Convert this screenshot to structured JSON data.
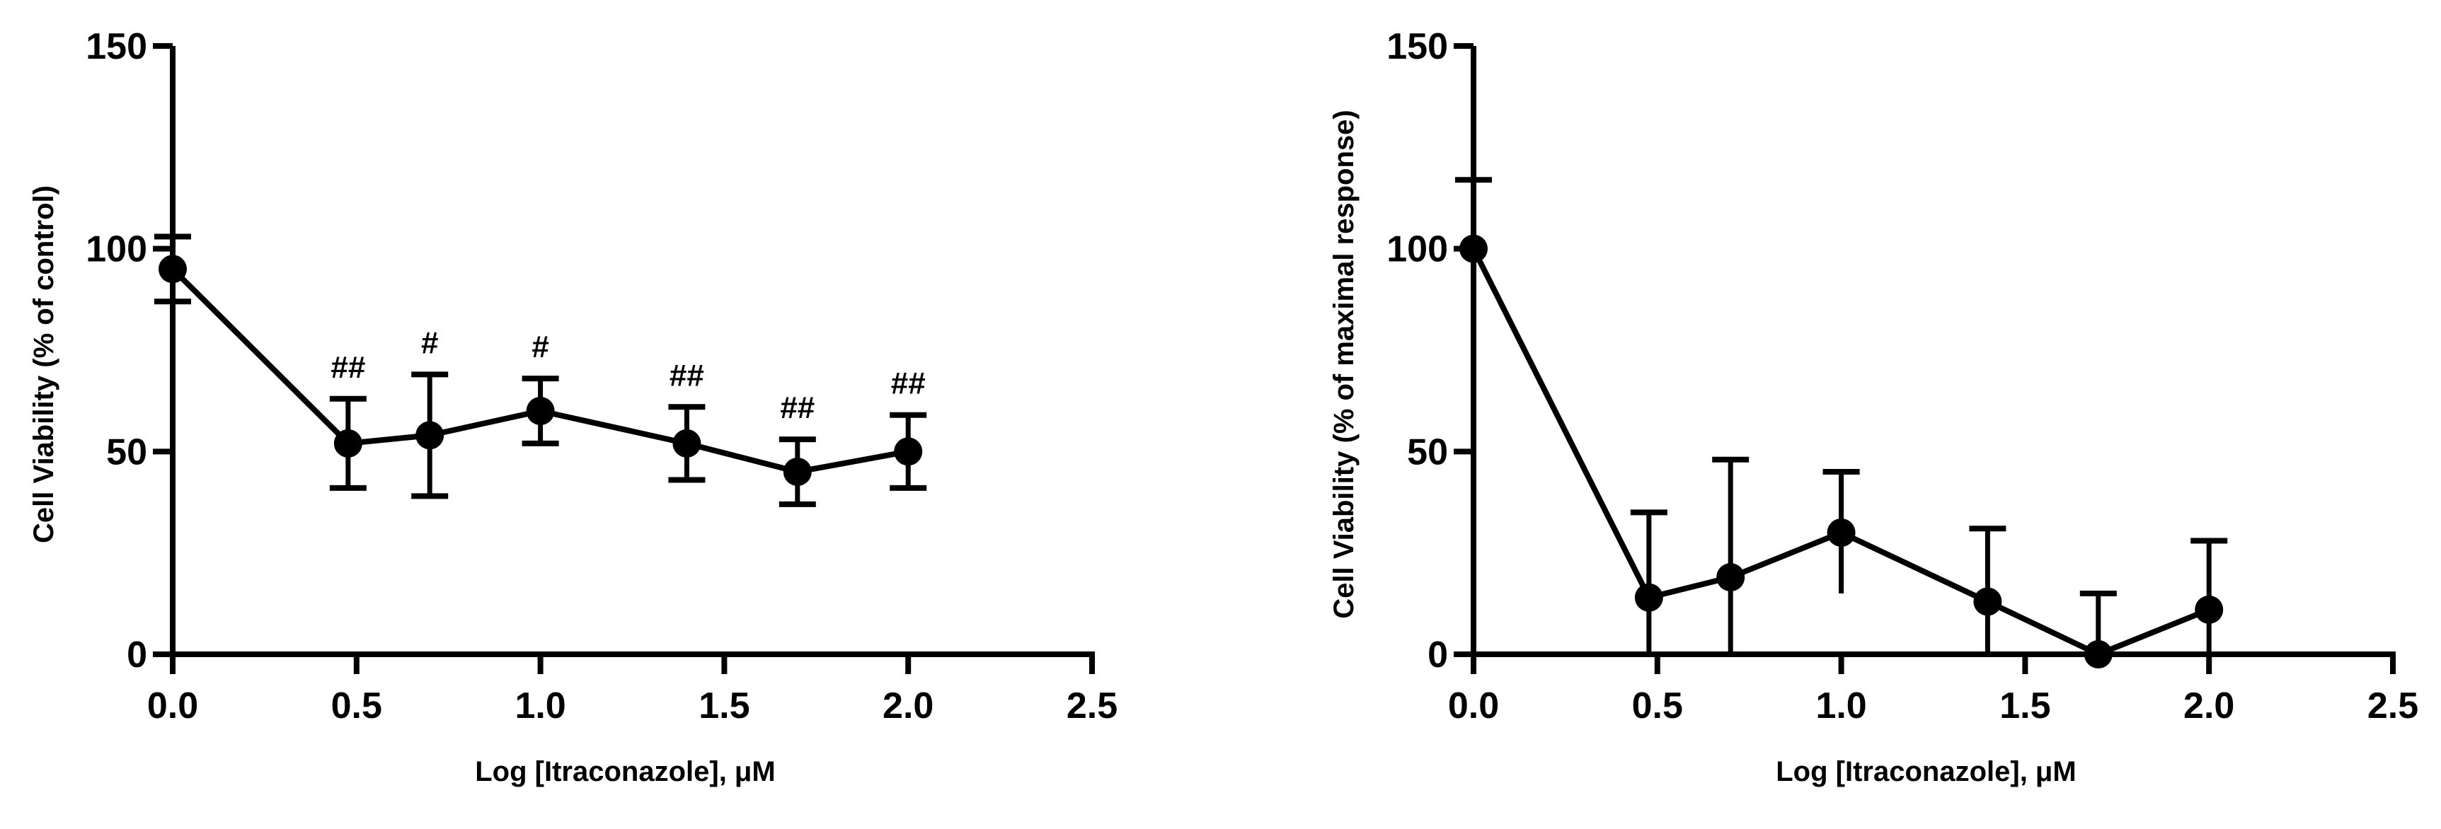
{
  "chart_data": [
    {
      "type": "line",
      "xlabel": "Log [Itraconazole], μM",
      "ylabel": "Cell Viability (% of control)",
      "xlim": [
        0,
        2.5
      ],
      "ylim": [
        0,
        150
      ],
      "x_ticks": [
        0.0,
        0.5,
        1.0,
        1.5,
        2.0,
        2.5
      ],
      "x_tick_labels": [
        "0.0",
        "0.5",
        "1.0",
        "1.5",
        "2.0",
        "2.5"
      ],
      "y_ticks": [
        0,
        50,
        100,
        150
      ],
      "y_tick_labels": [
        "0",
        "50",
        "100",
        "150"
      ],
      "error_bars": "symmetric",
      "series": [
        {
          "name": "Itraconazole",
          "x": [
            0.0,
            0.477,
            0.699,
            1.0,
            1.398,
            1.699,
            2.0
          ],
          "y": [
            95,
            52,
            54,
            60,
            52,
            45,
            50
          ],
          "error": [
            8,
            11,
            15,
            8,
            9,
            8,
            9
          ],
          "annotations": [
            "",
            "##",
            "#",
            "#",
            "##",
            "##",
            "##"
          ]
        }
      ]
    },
    {
      "type": "line",
      "xlabel": "Log [Itraconazole], μM",
      "ylabel": "Cell Viability (% of maximal response)",
      "xlim": [
        0,
        2.5
      ],
      "ylim": [
        0,
        150
      ],
      "x_ticks": [
        0.0,
        0.5,
        1.0,
        1.5,
        2.0,
        2.5
      ],
      "x_tick_labels": [
        "0.0",
        "0.5",
        "1.0",
        "1.5",
        "2.0",
        "2.5"
      ],
      "y_ticks": [
        0,
        50,
        100,
        150
      ],
      "y_tick_labels": [
        "0",
        "50",
        "100",
        "150"
      ],
      "error_bars": "upper-and-lower",
      "series": [
        {
          "name": "Itraconazole",
          "x": [
            0.0,
            0.477,
            0.699,
            1.0,
            1.398,
            1.699,
            2.0
          ],
          "y": [
            100,
            14,
            19,
            30,
            13,
            0,
            11
          ],
          "error": [
            17,
            21,
            29,
            15,
            18,
            15,
            17
          ],
          "annotations": [
            "",
            "",
            "",
            "",
            "",
            "",
            ""
          ]
        }
      ]
    }
  ]
}
